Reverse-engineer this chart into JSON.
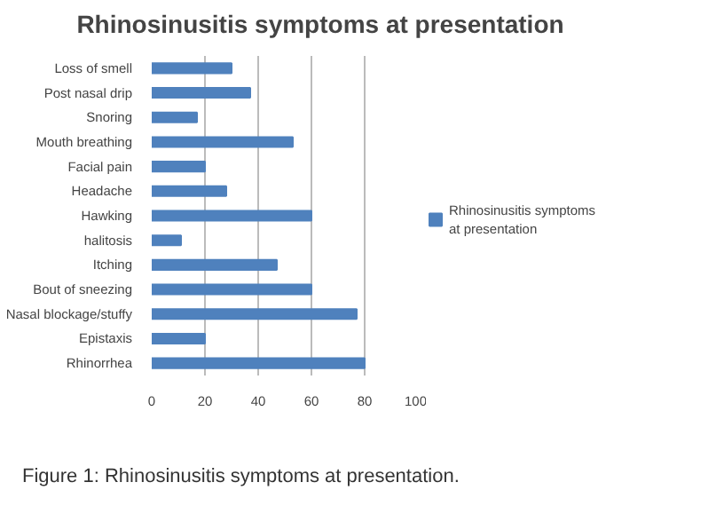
{
  "chart_data": {
    "type": "bar",
    "orientation": "horizontal",
    "title": "Rhinosinusitis symptoms at presentation",
    "categories": [
      "Loss of smell",
      "Post nasal drip",
      "Snoring",
      "Mouth breathing",
      "Facial pain",
      "Headache",
      "Hawking",
      "halitosis",
      "Itching",
      "Bout of sneezing",
      "Nasal blockage/stuffy",
      "Epistaxis",
      "Rhinorrhea"
    ],
    "series": [
      {
        "name": "Rhinosinusitis symptoms at presentation",
        "color": "#4f81bd",
        "values": [
          30,
          37,
          17,
          53,
          20,
          28,
          60,
          11,
          47,
          60,
          77,
          20,
          80
        ]
      }
    ],
    "xlim": [
      0,
      100
    ],
    "xticks": [
      0,
      20,
      40,
      60,
      80,
      100
    ],
    "grid": "x",
    "legend": "right",
    "annotations": [
      "Figure 1: Rhinosinusitis symptoms at presentation."
    ]
  }
}
